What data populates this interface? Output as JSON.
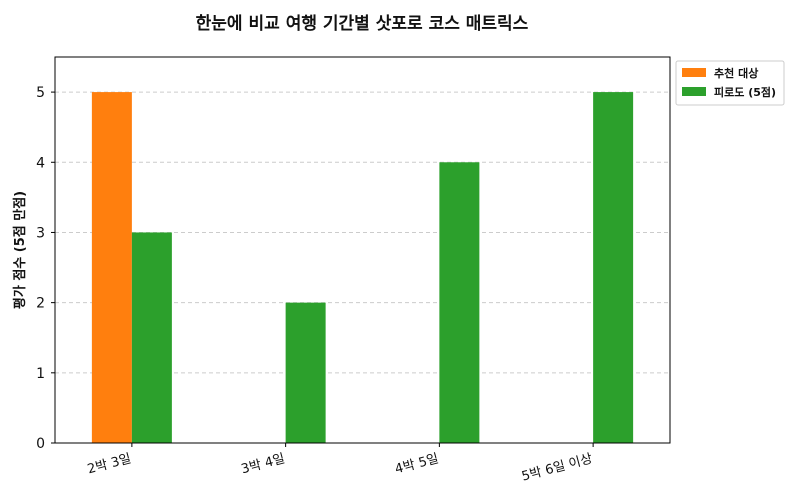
{
  "chart_data": {
    "type": "bar",
    "title": "한눈에 비교 여행 기간별 삿포로 코스 매트릭스",
    "xlabel": "",
    "ylabel": "평가 점수 (5점 만점)",
    "categories": [
      "2박 3일",
      "3박 4일",
      "4박 5일",
      "5박 6일 이상"
    ],
    "series": [
      {
        "name": "추천 대상",
        "values": [
          5,
          0,
          0,
          0
        ],
        "color": "#ff7f0e"
      },
      {
        "name": "피로도 (5점)",
        "values": [
          3,
          2,
          4,
          5
        ],
        "color": "#2ca02c"
      }
    ],
    "ylim": [
      0,
      5.5
    ],
    "yticks": [
      0,
      1,
      2,
      3,
      4,
      5
    ],
    "grid": "y-dashed",
    "legend": "top-right-outside"
  }
}
